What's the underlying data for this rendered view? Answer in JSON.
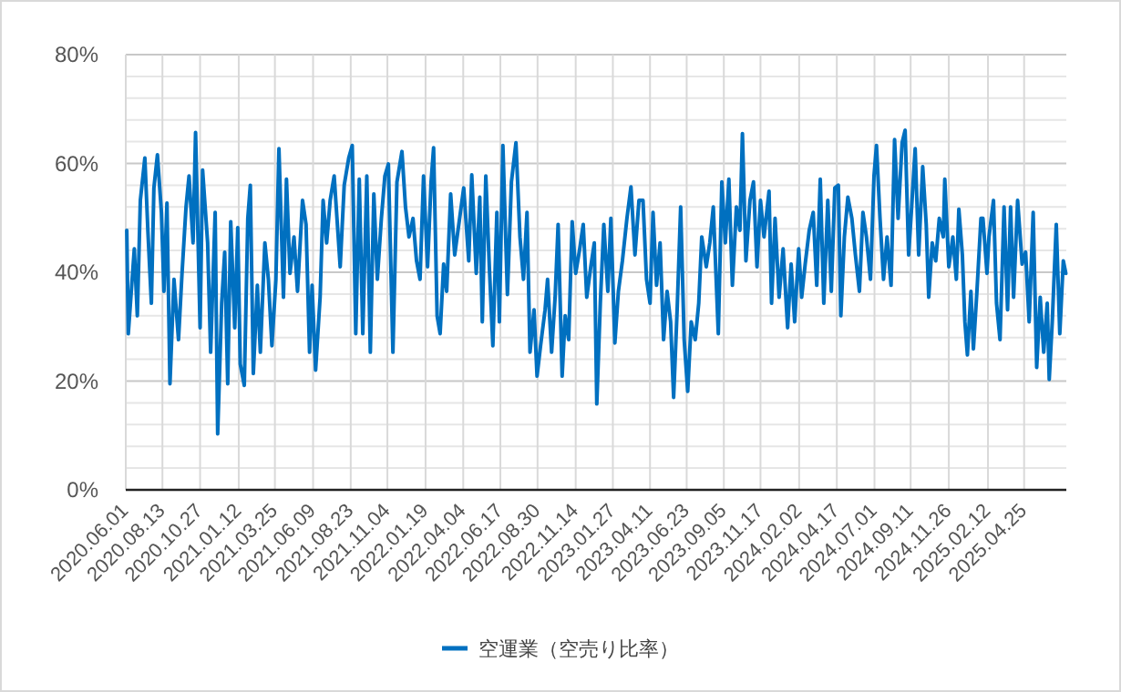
{
  "chart_data": {
    "type": "line",
    "grid": true,
    "legend": "bottom",
    "line_style": "solid",
    "xlim": [
      "2020-06-01",
      "2025-07-18"
    ],
    "ylim": [
      0,
      80
    ],
    "yticks": [
      {
        "value": 0,
        "label": "0%"
      },
      {
        "value": 4,
        "label": null
      },
      {
        "value": 8,
        "label": null
      },
      {
        "value": 12,
        "label": null
      },
      {
        "value": 16,
        "label": null
      },
      {
        "value": 20,
        "label": "20%"
      },
      {
        "value": 24,
        "label": null
      },
      {
        "value": 28,
        "label": null
      },
      {
        "value": 32,
        "label": null
      },
      {
        "value": 36,
        "label": null
      },
      {
        "value": 40,
        "label": "40%"
      },
      {
        "value": 44,
        "label": null
      },
      {
        "value": 48,
        "label": null
      },
      {
        "value": 52,
        "label": null
      },
      {
        "value": 56,
        "label": null
      },
      {
        "value": 60,
        "label": "60%"
      },
      {
        "value": 64,
        "label": null
      },
      {
        "value": 68,
        "label": null
      },
      {
        "value": 72,
        "label": null
      },
      {
        "value": 76,
        "label": null
      },
      {
        "value": 80,
        "label": "80%"
      }
    ],
    "xticks": [
      {
        "value": "2020-06-01",
        "label": "2020.06.01"
      },
      {
        "value": "2020-08-13",
        "label": "2020.08.13"
      },
      {
        "value": "2020-10-27",
        "label": "2020.10.27"
      },
      {
        "value": "2021-01-12",
        "label": "2021.01.12"
      },
      {
        "value": "2021-03-25",
        "label": "2021.03.25"
      },
      {
        "value": "2021-06-09",
        "label": "2021.06.09"
      },
      {
        "value": "2021-08-23",
        "label": "2021.08.23"
      },
      {
        "value": "2021-11-04",
        "label": "2021.11.04"
      },
      {
        "value": "2022-01-19",
        "label": "2022.01.19"
      },
      {
        "value": "2022-04-04",
        "label": "2022.04.04"
      },
      {
        "value": "2022-06-17",
        "label": "2022.06.17"
      },
      {
        "value": "2022-08-30",
        "label": "2022.08.30"
      },
      {
        "value": "2022-11-14",
        "label": "2022.11.14"
      },
      {
        "value": "2023-01-27",
        "label": "2023.01.27"
      },
      {
        "value": "2023-04-11",
        "label": "2023.04.11"
      },
      {
        "value": "2023-06-23",
        "label": "2023.06.23"
      },
      {
        "value": "2023-09-05",
        "label": "2023.09.05"
      },
      {
        "value": "2023-11-17",
        "label": "2023.11.17"
      },
      {
        "value": "2024-02-02",
        "label": "2024.02.02"
      },
      {
        "value": "2024-04-17",
        "label": "2024.04.17"
      },
      {
        "value": "2024-07-01",
        "label": "2024.07.01"
      },
      {
        "value": "2024-09-11",
        "label": "2024.09.11"
      },
      {
        "value": "2024-11-26",
        "label": "2024.11.26"
      },
      {
        "value": "2025-02-12",
        "label": "2025.02.12"
      },
      {
        "value": "2025-04-25",
        "label": "2025.04.25"
      }
    ],
    "x": [
      "2020-06-03",
      "2020-06-06",
      "2020-06-18",
      "2020-06-24",
      "2020-06-30",
      "2020-07-09",
      "2020-07-15",
      "2020-07-22",
      "2020-07-27",
      "2020-08-03",
      "2020-08-11",
      "2020-08-16",
      "2020-08-22",
      "2020-08-28",
      "2020-09-05",
      "2020-09-14",
      "2020-09-21",
      "2020-09-29",
      "2020-10-05",
      "2020-10-13",
      "2020-10-18",
      "2020-10-27",
      "2020-11-01",
      "2020-11-11",
      "2020-11-17",
      "2020-11-26",
      "2020-12-01",
      "2020-12-09",
      "2020-12-15",
      "2020-12-21",
      "2020-12-27",
      "2021-01-04",
      "2021-01-10",
      "2021-01-15",
      "2021-01-23",
      "2021-01-30",
      "2021-02-04",
      "2021-02-10",
      "2021-02-18",
      "2021-02-24",
      "2021-03-05",
      "2021-03-12",
      "2021-03-19",
      "2021-03-27",
      "2021-04-02",
      "2021-04-11",
      "2021-04-17",
      "2021-04-24",
      "2021-05-02",
      "2021-05-09",
      "2021-05-19",
      "2021-05-26",
      "2021-06-02",
      "2021-06-07",
      "2021-06-14",
      "2021-06-23",
      "2021-06-29",
      "2021-07-06",
      "2021-07-13",
      "2021-07-21",
      "2021-08-02",
      "2021-08-10",
      "2021-08-19",
      "2021-08-26",
      "2021-09-02",
      "2021-09-09",
      "2021-09-16",
      "2021-09-24",
      "2021-10-01",
      "2021-10-08",
      "2021-10-15",
      "2021-10-23",
      "2021-10-30",
      "2021-11-06",
      "2021-11-15",
      "2021-11-23",
      "2021-12-03",
      "2021-12-10",
      "2021-12-17",
      "2021-12-25",
      "2022-01-01",
      "2022-01-08",
      "2022-01-15",
      "2022-01-23",
      "2022-01-30",
      "2022-02-04",
      "2022-02-11",
      "2022-02-17",
      "2022-02-24",
      "2022-03-02",
      "2022-03-10",
      "2022-03-18",
      "2022-04-05",
      "2022-04-15",
      "2022-04-21",
      "2022-04-30",
      "2022-05-07",
      "2022-05-12",
      "2022-05-19",
      "2022-05-26",
      "2022-06-02",
      "2022-06-10",
      "2022-06-15",
      "2022-06-22",
      "2022-07-01",
      "2022-07-09",
      "2022-07-18",
      "2022-07-26",
      "2022-08-02",
      "2022-08-09",
      "2022-08-15",
      "2022-08-23",
      "2022-08-29",
      "2022-09-05",
      "2022-09-14",
      "2022-09-19",
      "2022-09-27",
      "2022-10-04",
      "2022-10-10",
      "2022-10-18",
      "2022-10-24",
      "2022-10-31",
      "2022-11-07",
      "2022-11-14",
      "2022-11-22",
      "2022-11-29",
      "2022-12-06",
      "2022-12-14",
      "2022-12-21",
      "2022-12-26",
      "2023-01-02",
      "2023-01-09",
      "2023-01-17",
      "2023-01-23",
      "2023-01-31",
      "2023-02-07",
      "2023-02-15",
      "2023-02-24",
      "2023-03-04",
      "2023-03-12",
      "2023-03-20",
      "2023-03-28",
      "2023-04-04",
      "2023-04-11",
      "2023-04-17",
      "2023-04-24",
      "2023-05-01",
      "2023-05-08",
      "2023-05-15",
      "2023-05-22",
      "2023-05-28",
      "2023-06-04",
      "2023-06-11",
      "2023-06-18",
      "2023-06-25",
      "2023-07-02",
      "2023-07-10",
      "2023-07-17",
      "2023-07-23",
      "2023-08-01",
      "2023-08-08",
      "2023-08-15",
      "2023-08-25",
      "2023-09-01",
      "2023-09-08",
      "2023-09-15",
      "2023-09-22",
      "2023-09-30",
      "2023-10-07",
      "2023-10-12",
      "2023-10-19",
      "2023-10-27",
      "2023-11-03",
      "2023-11-10",
      "2023-11-17",
      "2023-11-24",
      "2023-12-04",
      "2023-12-09",
      "2023-12-16",
      "2023-12-24",
      "2024-01-01",
      "2024-01-10",
      "2024-01-17",
      "2024-01-24",
      "2024-02-01",
      "2024-02-07",
      "2024-02-14",
      "2024-02-22",
      "2024-03-01",
      "2024-03-08",
      "2024-03-15",
      "2024-03-22",
      "2024-03-30",
      "2024-04-06",
      "2024-04-13",
      "2024-04-20",
      "2024-04-25",
      "2024-05-02",
      "2024-05-09",
      "2024-05-17",
      "2024-05-24",
      "2024-06-01",
      "2024-06-08",
      "2024-06-15",
      "2024-06-23",
      "2024-06-30",
      "2024-07-05",
      "2024-07-12",
      "2024-07-19",
      "2024-07-26",
      "2024-08-03",
      "2024-08-10",
      "2024-08-17",
      "2024-08-25",
      "2024-08-31",
      "2024-09-07",
      "2024-09-13",
      "2024-09-20",
      "2024-09-27",
      "2024-10-05",
      "2024-10-12",
      "2024-10-17",
      "2024-10-24",
      "2024-10-31",
      "2024-11-07",
      "2024-11-15",
      "2024-11-18",
      "2024-11-26",
      "2024-12-04",
      "2024-12-11",
      "2024-12-16",
      "2024-12-23",
      "2024-12-28",
      "2025-01-02",
      "2025-01-09",
      "2025-01-14",
      "2025-01-21",
      "2025-01-29",
      "2025-02-02",
      "2025-02-10",
      "2025-02-14",
      "2025-02-23",
      "2025-03-01",
      "2025-03-08",
      "2025-03-16",
      "2025-03-23",
      "2025-03-29",
      "2025-04-04",
      "2025-04-12",
      "2025-04-21",
      "2025-04-28",
      "2025-05-05",
      "2025-05-13",
      "2025-05-20",
      "2025-05-27",
      "2025-06-03",
      "2025-06-10",
      "2025-06-14",
      "2025-06-20",
      "2025-06-28",
      "2025-07-05",
      "2025-07-12",
      "2025-07-17"
    ],
    "series": [
      {
        "name": "空運業（空売り比率）",
        "color": "#0070c0",
        "values": [
          47.7,
          28.7,
          44.3,
          32,
          53.2,
          61,
          47.7,
          34.3,
          55.5,
          61.6,
          51,
          36.5,
          52.7,
          19.5,
          38.7,
          27.6,
          39.8,
          52,
          57.7,
          45.4,
          65.7,
          29.8,
          58.8,
          45.4,
          25.3,
          51,
          10.3,
          34.3,
          43.7,
          19.5,
          49.3,
          29.8,
          48.2,
          23.1,
          19.2,
          49.9,
          56,
          21.4,
          37.6,
          25.3,
          45.4,
          38.7,
          26.5,
          38.7,
          62.7,
          35.4,
          57.1,
          39.8,
          46.5,
          36.5,
          53.2,
          48.8,
          25.3,
          37.6,
          22,
          35.4,
          53.2,
          45.4,
          53.2,
          57.7,
          41,
          56,
          61,
          63.3,
          28.7,
          57.1,
          28.7,
          57.7,
          25.3,
          54.4,
          38.7,
          49.9,
          57.7,
          59.9,
          25.3,
          56.6,
          62.2,
          52,
          46.5,
          49.9,
          42.1,
          38.7,
          57.7,
          41,
          56.6,
          62.9,
          32,
          28.7,
          41.5,
          36.5,
          54.4,
          43.2,
          55.5,
          42.1,
          57.9,
          39.8,
          53.8,
          30.9,
          57.7,
          41,
          26.5,
          51,
          30.9,
          63.3,
          35.9,
          56.6,
          63.8,
          46.5,
          38.7,
          51,
          25.3,
          33.1,
          20.9,
          26.5,
          33.1,
          38.7,
          25.3,
          35.4,
          48.8,
          20.9,
          32,
          27.6,
          49.3,
          39.8,
          44.3,
          48.8,
          35.4,
          41,
          45.4,
          15.8,
          34.3,
          48.8,
          36.5,
          49.9,
          27,
          36.5,
          42.1,
          49.9,
          55.7,
          43.2,
          53.2,
          53.2,
          38.7,
          34.3,
          51,
          37.6,
          45.4,
          27.6,
          36.5,
          30.9,
          17,
          33.1,
          52,
          27.6,
          18.1,
          30.9,
          27.6,
          34.3,
          46.5,
          41,
          45.4,
          52,
          28.7,
          56.6,
          45.4,
          57.1,
          37.6,
          52,
          47.7,
          65.5,
          42.1,
          53.2,
          56.6,
          41,
          53.2,
          46.5,
          54.9,
          34.3,
          49.9,
          35.4,
          44.3,
          29.8,
          41.5,
          30.9,
          44.3,
          35.4,
          41.5,
          47.7,
          51,
          37.6,
          57.1,
          34.3,
          53.2,
          36.5,
          55.5,
          56,
          32,
          46.5,
          53.8,
          49.9,
          43.2,
          36.5,
          51,
          46.5,
          38.7,
          57.7,
          63.3,
          49.9,
          38.7,
          46.5,
          37.6,
          64.4,
          49.9,
          63.8,
          66.1,
          43.2,
          52,
          62.7,
          43.2,
          59.4,
          48.8,
          35.4,
          45.4,
          42.1,
          49.9,
          46.5,
          57.1,
          41,
          46.5,
          38.7,
          51.6,
          43.2,
          30.9,
          24.8,
          36.5,
          25.9,
          36.5,
          49.9,
          49.9,
          39.8,
          46.5,
          53.2,
          34.3,
          27.6,
          52,
          33.1,
          52,
          35.4,
          53.2,
          41.5,
          43.7,
          30.9,
          51,
          22.5,
          35.4,
          25.3,
          34.3,
          20.3,
          30.9,
          48.8,
          28.7,
          42.1,
          39.8
        ]
      }
    ]
  }
}
